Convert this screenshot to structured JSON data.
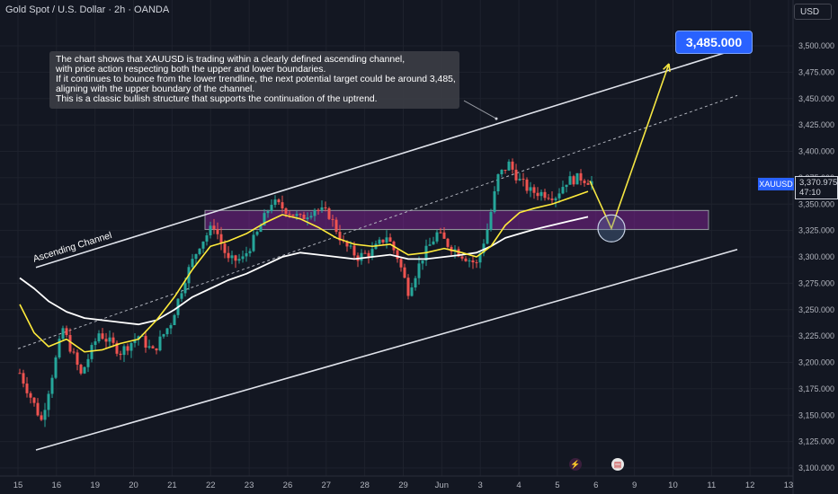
{
  "header": {
    "title": "Gold Spot / U.S. Dollar · 2h · OANDA",
    "currency_button": "USD"
  },
  "annotation": {
    "lines": [
      "The chart shows that XAUUSD is trading within a clearly defined ascending channel,",
      "with price action respecting both the upper and lower boundaries.",
      "If it continues to bounce from the lower trendline, the next potential target could be around 3,485,",
      "aligning with the upper boundary of the channel.",
      "This is a classic bullish structure that supports the continuation of the uptrend."
    ],
    "channel_label": "Ascending Channel",
    "target_label": "3,485.000"
  },
  "price_tag": {
    "symbol": "XAUUSD",
    "price": "3,370.975",
    "countdown": "47:10"
  },
  "events": {
    "first_icon": "lightning-icon",
    "second_icon": "us-flag-icon"
  },
  "colors": {
    "background": "#131722",
    "candle_up": "#26a69a",
    "candle_down": "#ef5350",
    "ma_fast": "#ffeb3b",
    "ma_slow": "#ffffff",
    "zone": "#9c27b0",
    "target_box": "#2962ff"
  },
  "chart_data": {
    "type": "candlestick",
    "x_tick_labels": [
      "15",
      "16",
      "19",
      "20",
      "21",
      "22",
      "23",
      "26",
      "27",
      "28",
      "29",
      "Jun",
      "3",
      "4",
      "5",
      "6",
      "9",
      "10",
      "11",
      "12",
      "13"
    ],
    "y_tick_labels": [
      "3,500.000",
      "3,475.000",
      "3,450.000",
      "3,425.000",
      "3,400.000",
      "3,375.000",
      "3,350.000",
      "3,325.000",
      "3,300.000",
      "3,275.000",
      "3,250.000",
      "3,225.000",
      "3,200.000",
      "3,175.000",
      "3,150.000",
      "3,125.000",
      "3,100.000"
    ],
    "ylim": [
      3095,
      3515
    ],
    "bar_count": 160,
    "path_anchors": [
      [
        0,
        3190
      ],
      [
        6,
        3145
      ],
      [
        12,
        3232
      ],
      [
        17,
        3188
      ],
      [
        22,
        3228
      ],
      [
        28,
        3210
      ],
      [
        33,
        3225
      ],
      [
        37,
        3210
      ],
      [
        42,
        3238
      ],
      [
        46,
        3280
      ],
      [
        50,
        3312
      ],
      [
        54,
        3330
      ],
      [
        58,
        3296
      ],
      [
        62,
        3298
      ],
      [
        66,
        3322
      ],
      [
        70,
        3352
      ],
      [
        74,
        3345
      ],
      [
        78,
        3336
      ],
      [
        82,
        3346
      ],
      [
        86,
        3340
      ],
      [
        90,
        3312
      ],
      [
        94,
        3300
      ],
      [
        98,
        3305
      ],
      [
        102,
        3320
      ],
      [
        105,
        3300
      ],
      [
        108,
        3268
      ],
      [
        112,
        3300
      ],
      [
        116,
        3322
      ],
      [
        119,
        3312
      ],
      [
        123,
        3302
      ],
      [
        127,
        3293
      ],
      [
        130,
        3326
      ],
      [
        133,
        3376
      ],
      [
        136,
        3388
      ],
      [
        139,
        3372
      ],
      [
        142,
        3362
      ],
      [
        146,
        3360
      ],
      [
        149,
        3358
      ],
      [
        152,
        3372
      ],
      [
        156,
        3375
      ],
      [
        159,
        3371
      ]
    ],
    "ma_fast": [
      [
        0,
        3255
      ],
      [
        4,
        3228
      ],
      [
        8,
        3215
      ],
      [
        13,
        3222
      ],
      [
        18,
        3210
      ],
      [
        23,
        3212
      ],
      [
        28,
        3218
      ],
      [
        33,
        3222
      ],
      [
        38,
        3240
      ],
      [
        43,
        3262
      ],
      [
        48,
        3288
      ],
      [
        53,
        3310
      ],
      [
        58,
        3315
      ],
      [
        63,
        3322
      ],
      [
        68,
        3332
      ],
      [
        73,
        3340
      ],
      [
        78,
        3336
      ],
      [
        83,
        3328
      ],
      [
        88,
        3318
      ],
      [
        93,
        3312
      ],
      [
        98,
        3310
      ],
      [
        103,
        3312
      ],
      [
        108,
        3302
      ],
      [
        113,
        3304
      ],
      [
        118,
        3308
      ],
      [
        123,
        3304
      ],
      [
        127,
        3300
      ],
      [
        131,
        3310
      ],
      [
        135,
        3330
      ],
      [
        139,
        3342
      ],
      [
        143,
        3346
      ],
      [
        148,
        3350
      ],
      [
        153,
        3356
      ],
      [
        158,
        3362
      ]
    ],
    "ma_slow": [
      [
        0,
        3280
      ],
      [
        4,
        3270
      ],
      [
        8,
        3258
      ],
      [
        13,
        3248
      ],
      [
        18,
        3242
      ],
      [
        23,
        3240
      ],
      [
        28,
        3238
      ],
      [
        33,
        3236
      ],
      [
        38,
        3240
      ],
      [
        43,
        3250
      ],
      [
        48,
        3262
      ],
      [
        53,
        3270
      ],
      [
        58,
        3278
      ],
      [
        63,
        3284
      ],
      [
        68,
        3292
      ],
      [
        73,
        3300
      ],
      [
        78,
        3304
      ],
      [
        83,
        3302
      ],
      [
        88,
        3300
      ],
      [
        93,
        3298
      ],
      [
        98,
        3300
      ],
      [
        103,
        3302
      ],
      [
        108,
        3298
      ],
      [
        113,
        3298
      ],
      [
        118,
        3300
      ],
      [
        123,
        3302
      ],
      [
        127,
        3304
      ],
      [
        131,
        3310
      ],
      [
        135,
        3318
      ],
      [
        139,
        3322
      ],
      [
        143,
        3326
      ],
      [
        148,
        3330
      ],
      [
        153,
        3334
      ],
      [
        158,
        3338
      ]
    ],
    "upper_channel": [
      [
        5,
        3290
      ],
      [
        200,
        3497
      ]
    ],
    "lower_channel": [
      [
        5,
        3117
      ],
      [
        200,
        3307
      ]
    ],
    "midline": [
      [
        0,
        3213
      ],
      [
        200,
        3453
      ]
    ],
    "resistance_zone": {
      "x1": 52,
      "x2": 192,
      "y_low": 3326,
      "y_high": 3344
    },
    "forecast_path": [
      [
        159,
        3372
      ],
      [
        165,
        3327
      ],
      [
        181,
        3483
      ]
    ],
    "bounce_circle": {
      "x": 165,
      "y": 3327
    },
    "annotation_pointer": [
      [
        124,
        3448
      ],
      [
        133,
        3431
      ]
    ]
  }
}
